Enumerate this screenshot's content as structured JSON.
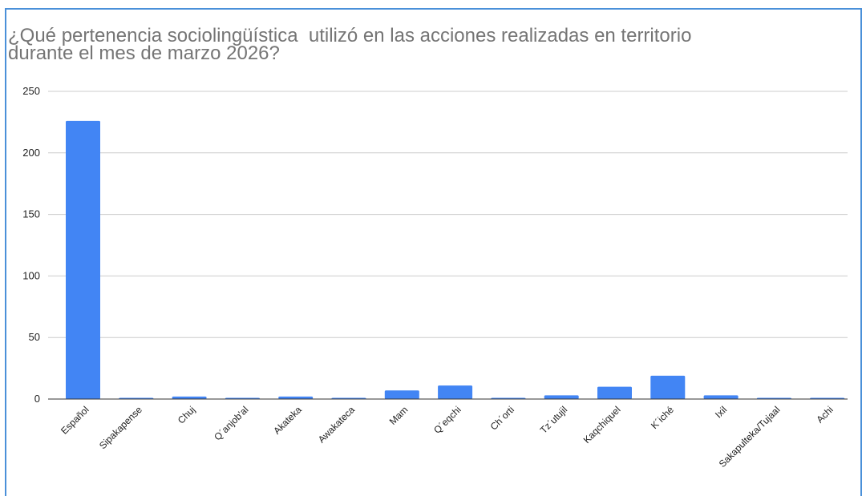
{
  "colors": {
    "frame": "#4a90d9",
    "bar": "#4285f4",
    "grid": "#cccccc",
    "title": "#757575",
    "text": "#222222"
  },
  "chart_data": {
    "type": "bar",
    "title": "¿Qué pertenencia sociolingüística  utilizó en las acciones realizadas en territorio\ndurante el mes de marzo 2026?",
    "xlabel": "",
    "ylabel": "",
    "ylim": [
      0,
      250
    ],
    "yticks": [
      0,
      50,
      100,
      150,
      200,
      250
    ],
    "grid": true,
    "legend": "none",
    "categories": [
      "Español",
      "Sipakapense",
      "Chuj",
      "Q´anjob'al",
      "Akateka",
      "Awakateca",
      "Mam",
      "Q´eqchi",
      "Ch´orti",
      "Tz´utujil",
      "Kaqchiquel",
      "K´iché",
      "Ixil",
      "Sakapulteka/Tujaal",
      "Achi"
    ],
    "values": [
      226,
      1,
      2,
      1,
      2,
      1,
      7,
      11,
      1,
      3,
      10,
      19,
      3,
      1,
      1
    ]
  }
}
